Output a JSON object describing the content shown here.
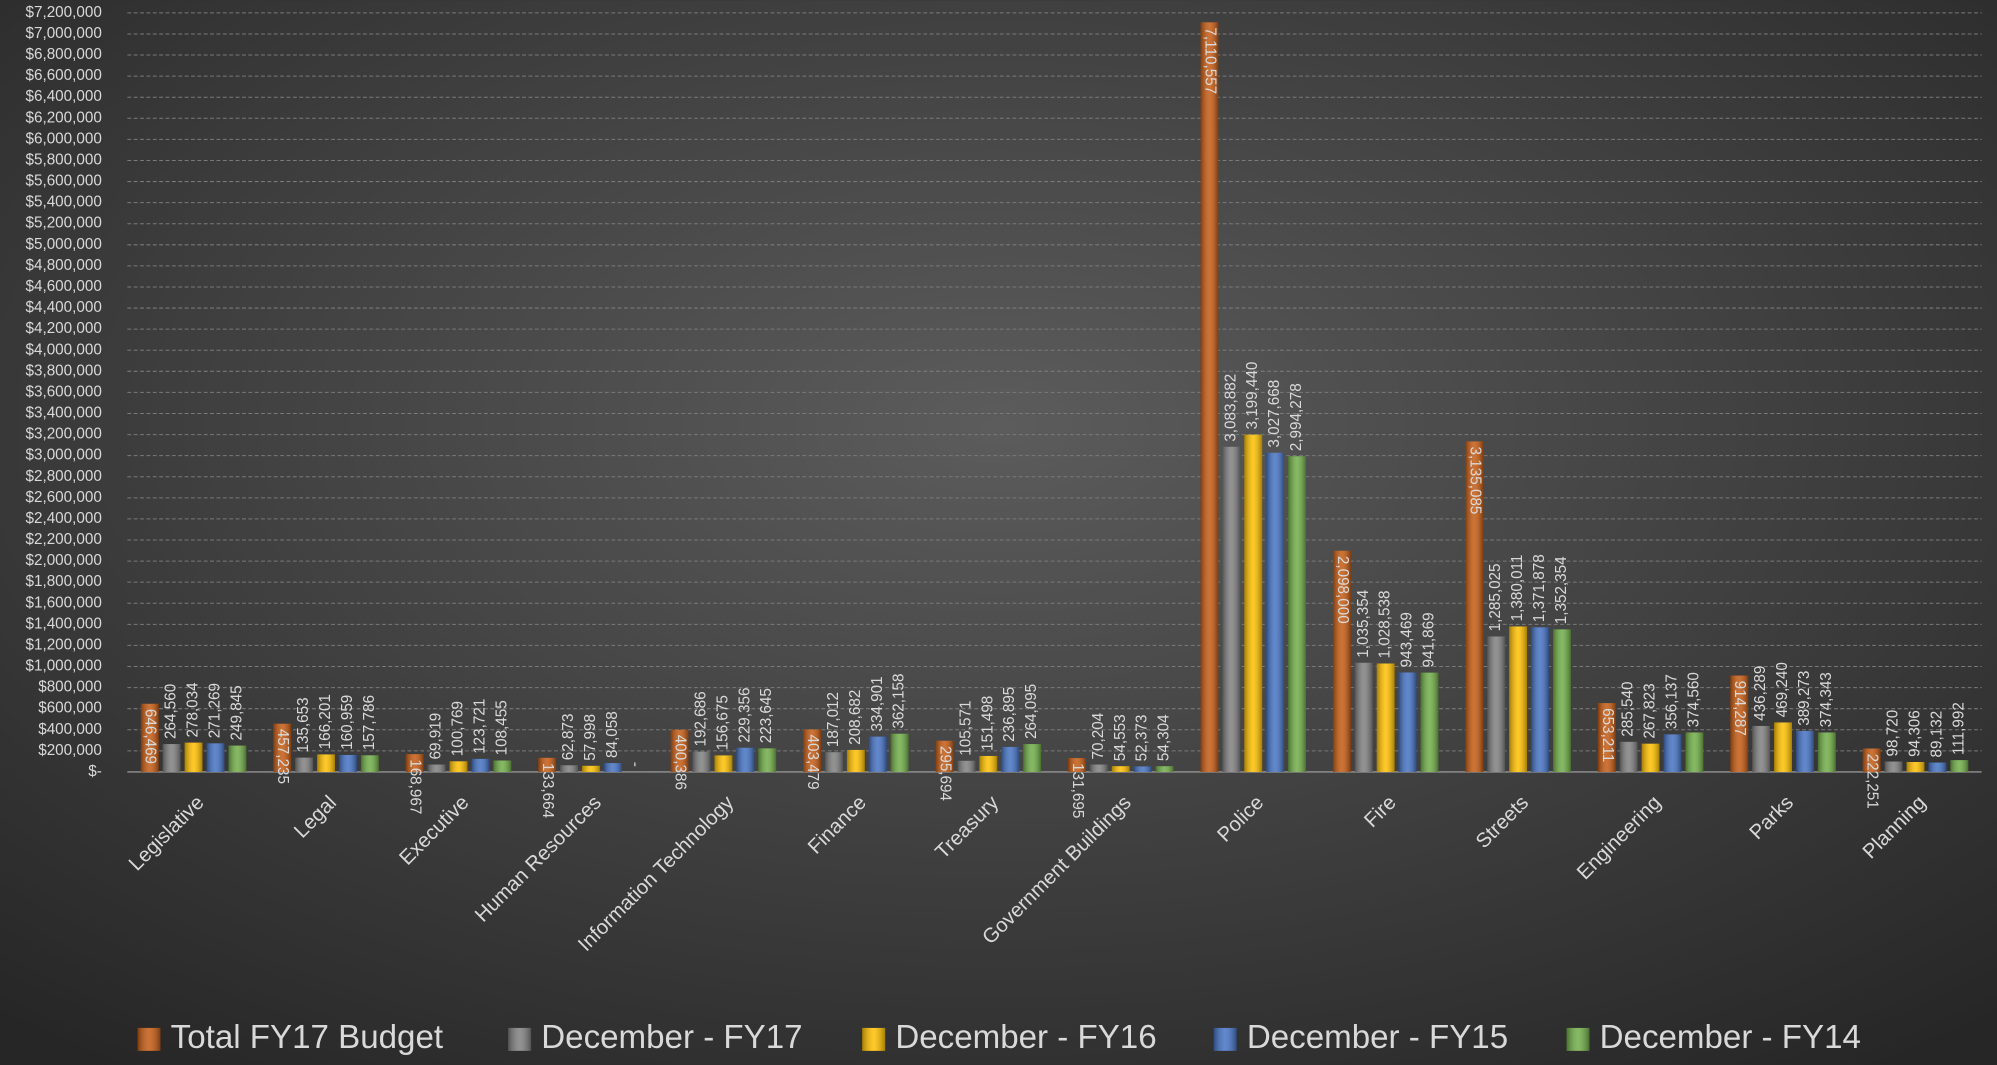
{
  "chart_data": {
    "type": "bar",
    "categories": [
      "Legislative",
      "Legal",
      "Executive",
      "Human Resources",
      "Information Technology",
      "Finance",
      "Treasury",
      "Government Buildings",
      "Police",
      "Fire",
      "Streets",
      "Engineering",
      "Parks",
      "Planning"
    ],
    "series": [
      {
        "name": "Total FY17 Budget",
        "color": "#c55a11",
        "values": [
          646469,
          457235,
          168967,
          133664,
          400386,
          403479,
          295694,
          131695,
          7110557,
          2098000,
          3135085,
          653211,
          914287,
          222251
        ],
        "value_labels": [
          "646,469",
          "457,235",
          "168,967",
          "133,664",
          "400,386",
          "403,479",
          "295,694",
          "131,695",
          "7,110,557",
          "2,098,000",
          "3,135,085",
          "653,211",
          "914,287",
          "222,251"
        ]
      },
      {
        "name": "December - FY17",
        "color": "#7f7f7f",
        "values": [
          264560,
          135653,
          69919,
          62873,
          192686,
          187012,
          105571,
          70204,
          3083882,
          1035354,
          1285025,
          285540,
          436289,
          98720
        ],
        "value_labels": [
          "264,560",
          "135,653",
          "69,919",
          "62,873",
          "192,686",
          "187,012",
          "105,571",
          "70,204",
          "3,083,882",
          "1,035,354",
          "1,285,025",
          "285,540",
          "436,289",
          "98,720"
        ]
      },
      {
        "name": "December - FY16",
        "color": "#ffc000",
        "values": [
          278034,
          166201,
          100769,
          57998,
          156675,
          208682,
          151498,
          54553,
          3199440,
          1028538,
          1380011,
          267823,
          469240,
          94306
        ],
        "value_labels": [
          "278,034",
          "166,201",
          "100,769",
          "57,998",
          "156,675",
          "208,682",
          "151,498",
          "54,553",
          "3,199,440",
          "1,028,538",
          "1,380,011",
          "267,823",
          "469,240",
          "94,306"
        ]
      },
      {
        "name": "December - FY15",
        "color": "#4472c4",
        "values": [
          271269,
          160959,
          123721,
          84058,
          229356,
          334901,
          236895,
          52373,
          3027668,
          943469,
          1371878,
          356137,
          389273,
          89132
        ],
        "value_labels": [
          "271,269",
          "160,959",
          "123,721",
          "84,058",
          "229,356",
          "334,901",
          "236,895",
          "52,373",
          "3,027,668",
          "943,469",
          "1,371,878",
          "356,137",
          "389,273",
          "89,132"
        ]
      },
      {
        "name": "December - FY14",
        "color": "#70ad47",
        "values": [
          249845,
          157786,
          108455,
          0,
          223645,
          362158,
          264095,
          54304,
          2994278,
          941869,
          1352354,
          374560,
          374343,
          111992
        ],
        "value_labels": [
          "249,845",
          "157,786",
          "108,455",
          "-",
          "223,645",
          "362,158",
          "264,095",
          "54,304",
          "2,994,278",
          "941,869",
          "1,352,354",
          "374,560",
          "374,343",
          "111,992"
        ]
      }
    ],
    "ylim": [
      0,
      7200000
    ],
    "yticks": [
      {
        "value": 0,
        "label": "$-"
      },
      {
        "value": 200000,
        "label": "$200,000"
      },
      {
        "value": 400000,
        "label": "$400,000"
      },
      {
        "value": 600000,
        "label": "$600,000"
      },
      {
        "value": 800000,
        "label": "$800,000"
      },
      {
        "value": 1000000,
        "label": "$1,000,000"
      },
      {
        "value": 1200000,
        "label": "$1,200,000"
      },
      {
        "value": 1400000,
        "label": "$1,400,000"
      },
      {
        "value": 1600000,
        "label": "$1,600,000"
      },
      {
        "value": 1800000,
        "label": "$1,800,000"
      },
      {
        "value": 2000000,
        "label": "$2,000,000"
      },
      {
        "value": 2200000,
        "label": "$2,200,000"
      },
      {
        "value": 2400000,
        "label": "$2,400,000"
      },
      {
        "value": 2600000,
        "label": "$2,600,000"
      },
      {
        "value": 2800000,
        "label": "$2,800,000"
      },
      {
        "value": 3000000,
        "label": "$3,000,000"
      },
      {
        "value": 3200000,
        "label": "$3,200,000"
      },
      {
        "value": 3400000,
        "label": "$3,400,000"
      },
      {
        "value": 3600000,
        "label": "$3,600,000"
      },
      {
        "value": 3800000,
        "label": "$3,800,000"
      },
      {
        "value": 4000000,
        "label": "$4,000,000"
      },
      {
        "value": 4200000,
        "label": "$4,200,000"
      },
      {
        "value": 4400000,
        "label": "$4,400,000"
      },
      {
        "value": 4600000,
        "label": "$4,600,000"
      },
      {
        "value": 4800000,
        "label": "$4,800,000"
      },
      {
        "value": 5000000,
        "label": "$5,000,000"
      },
      {
        "value": 5200000,
        "label": "$5,200,000"
      },
      {
        "value": 5400000,
        "label": "$5,400,000"
      },
      {
        "value": 5600000,
        "label": "$5,600,000"
      },
      {
        "value": 5800000,
        "label": "$5,800,000"
      },
      {
        "value": 6000000,
        "label": "$6,000,000"
      },
      {
        "value": 6200000,
        "label": "$6,200,000"
      },
      {
        "value": 6400000,
        "label": "$6,400,000"
      },
      {
        "value": 6600000,
        "label": "$6,600,000"
      },
      {
        "value": 6800000,
        "label": "$6,800,000"
      },
      {
        "value": 7000000,
        "label": "$7,000,000"
      },
      {
        "value": 7200000,
        "label": "$7,200,000"
      }
    ],
    "grid": true,
    "legend": "bottom"
  }
}
